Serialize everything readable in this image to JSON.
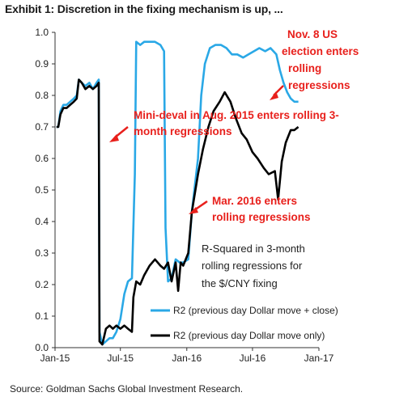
{
  "header": {
    "title": "Exhibit 1: Discretion in the fixing mechanism is up, ..."
  },
  "footer": {
    "source": "Source: Goldman Sachs Global Investment Research."
  },
  "chart_data": {
    "type": "line",
    "title": "Exhibit 1: Discretion in the fixing mechanism is up, ...",
    "xlabel": "",
    "ylabel": "",
    "x_ticks": [
      "Jan-15",
      "Jul-15",
      "Jan-16",
      "Jul-16",
      "Jan-17"
    ],
    "xlim": [
      "2015-01-01",
      "2017-01-01"
    ],
    "ylim": [
      0,
      1.0
    ],
    "y_ticks": [
      "0.0",
      "0.1",
      "0.2",
      "0.3",
      "0.4",
      "0.5",
      "0.6",
      "0.7",
      "0.8",
      "0.9",
      "1.0"
    ],
    "grid": false,
    "legend_position": "bottom-right",
    "note": [
      "R-Squared in 3-month",
      "rolling regressions for",
      "the $/CNY fixing"
    ],
    "annotations": [
      {
        "lines": [
          "Nov. 8 US",
          "election enters",
          "rolling",
          "regressions"
        ],
        "color": "#e8201c"
      },
      {
        "lines": [
          "Mini-deval in Aug. 2015  enters rolling 3-",
          "month regressions"
        ],
        "color": "#e8201c"
      },
      {
        "lines": [
          "Mar. 2016 enters",
          "rolling regressions"
        ],
        "color": "#e8201c"
      }
    ],
    "series": [
      {
        "name": "R2 (previous day Dollar move + close)",
        "color": "#2aa8e6",
        "points": [
          [
            "2015-01-05",
            0.7
          ],
          [
            "2015-01-10",
            0.7
          ],
          [
            "2015-01-16",
            0.75
          ],
          [
            "2015-01-24",
            0.77
          ],
          [
            "2015-02-02",
            0.77
          ],
          [
            "2015-02-12",
            0.78
          ],
          [
            "2015-02-22",
            0.79
          ],
          [
            "2015-03-02",
            0.8
          ],
          [
            "2015-03-08",
            0.85
          ],
          [
            "2015-03-16",
            0.84
          ],
          [
            "2015-03-26",
            0.83
          ],
          [
            "2015-04-06",
            0.84
          ],
          [
            "2015-04-16",
            0.82
          ],
          [
            "2015-04-26",
            0.84
          ],
          [
            "2015-05-02",
            0.85
          ],
          [
            "2015-05-04",
            0.05
          ],
          [
            "2015-05-12",
            0.01
          ],
          [
            "2015-05-22",
            0.02
          ],
          [
            "2015-06-01",
            0.03
          ],
          [
            "2015-06-10",
            0.03
          ],
          [
            "2015-06-20",
            0.05
          ],
          [
            "2015-07-01",
            0.09
          ],
          [
            "2015-07-12",
            0.17
          ],
          [
            "2015-07-22",
            0.21
          ],
          [
            "2015-08-02",
            0.22
          ],
          [
            "2015-08-10",
            0.55
          ],
          [
            "2015-08-14",
            0.97
          ],
          [
            "2015-08-25",
            0.96
          ],
          [
            "2015-09-05",
            0.97
          ],
          [
            "2015-09-20",
            0.97
          ],
          [
            "2015-10-05",
            0.97
          ],
          [
            "2015-10-20",
            0.96
          ],
          [
            "2015-10-30",
            0.94
          ],
          [
            "2015-11-03",
            0.38
          ],
          [
            "2015-11-10",
            0.21
          ],
          [
            "2015-11-20",
            0.22
          ],
          [
            "2015-12-01",
            0.28
          ],
          [
            "2015-12-12",
            0.27
          ],
          [
            "2015-12-22",
            0.27
          ],
          [
            "2016-01-05",
            0.28
          ],
          [
            "2016-01-15",
            0.43
          ],
          [
            "2016-02-01",
            0.6
          ],
          [
            "2016-02-10",
            0.8
          ],
          [
            "2016-02-20",
            0.9
          ],
          [
            "2016-03-05",
            0.95
          ],
          [
            "2016-03-20",
            0.96
          ],
          [
            "2016-04-05",
            0.96
          ],
          [
            "2016-04-20",
            0.95
          ],
          [
            "2016-05-05",
            0.93
          ],
          [
            "2016-05-20",
            0.93
          ],
          [
            "2016-06-05",
            0.92
          ],
          [
            "2016-06-20",
            0.93
          ],
          [
            "2016-07-05",
            0.94
          ],
          [
            "2016-07-20",
            0.95
          ],
          [
            "2016-08-05",
            0.94
          ],
          [
            "2016-08-20",
            0.95
          ],
          [
            "2016-09-05",
            0.93
          ],
          [
            "2016-09-15",
            0.88
          ],
          [
            "2016-09-25",
            0.84
          ],
          [
            "2016-10-05",
            0.81
          ],
          [
            "2016-10-15",
            0.79
          ],
          [
            "2016-10-25",
            0.78
          ],
          [
            "2016-11-05",
            0.78
          ]
        ]
      },
      {
        "name": "R2 (previous day Dollar move only)",
        "color": "#000000",
        "points": [
          [
            "2015-01-05",
            0.7
          ],
          [
            "2015-01-10",
            0.7
          ],
          [
            "2015-01-16",
            0.74
          ],
          [
            "2015-01-24",
            0.76
          ],
          [
            "2015-02-02",
            0.76
          ],
          [
            "2015-02-12",
            0.77
          ],
          [
            "2015-02-22",
            0.78
          ],
          [
            "2015-03-02",
            0.79
          ],
          [
            "2015-03-08",
            0.85
          ],
          [
            "2015-03-16",
            0.84
          ],
          [
            "2015-03-26",
            0.82
          ],
          [
            "2015-04-06",
            0.83
          ],
          [
            "2015-04-16",
            0.82
          ],
          [
            "2015-04-26",
            0.83
          ],
          [
            "2015-05-02",
            0.84
          ],
          [
            "2015-05-04",
            0.02
          ],
          [
            "2015-05-12",
            0.01
          ],
          [
            "2015-05-22",
            0.06
          ],
          [
            "2015-06-01",
            0.07
          ],
          [
            "2015-06-10",
            0.06
          ],
          [
            "2015-06-20",
            0.07
          ],
          [
            "2015-07-01",
            0.06
          ],
          [
            "2015-07-12",
            0.07
          ],
          [
            "2015-07-22",
            0.06
          ],
          [
            "2015-08-02",
            0.05
          ],
          [
            "2015-08-06",
            0.16
          ],
          [
            "2015-08-14",
            0.21
          ],
          [
            "2015-08-25",
            0.2
          ],
          [
            "2015-09-05",
            0.23
          ],
          [
            "2015-09-20",
            0.26
          ],
          [
            "2015-10-05",
            0.28
          ],
          [
            "2015-10-20",
            0.26
          ],
          [
            "2015-10-30",
            0.25
          ],
          [
            "2015-11-10",
            0.27
          ],
          [
            "2015-11-20",
            0.21
          ],
          [
            "2015-12-01",
            0.27
          ],
          [
            "2015-12-08",
            0.18
          ],
          [
            "2015-12-15",
            0.27
          ],
          [
            "2015-12-22",
            0.26
          ],
          [
            "2016-01-05",
            0.3
          ],
          [
            "2016-01-15",
            0.43
          ],
          [
            "2016-02-01",
            0.55
          ],
          [
            "2016-02-15",
            0.63
          ],
          [
            "2016-03-01",
            0.7
          ],
          [
            "2016-03-15",
            0.75
          ],
          [
            "2016-04-01",
            0.78
          ],
          [
            "2016-04-15",
            0.81
          ],
          [
            "2016-05-01",
            0.78
          ],
          [
            "2016-05-15",
            0.73
          ],
          [
            "2016-06-01",
            0.68
          ],
          [
            "2016-06-15",
            0.66
          ],
          [
            "2016-07-01",
            0.62
          ],
          [
            "2016-07-15",
            0.6
          ],
          [
            "2016-08-01",
            0.57
          ],
          [
            "2016-08-15",
            0.55
          ],
          [
            "2016-09-01",
            0.56
          ],
          [
            "2016-09-10",
            0.47
          ],
          [
            "2016-09-20",
            0.59
          ],
          [
            "2016-10-01",
            0.65
          ],
          [
            "2016-10-15",
            0.69
          ],
          [
            "2016-10-25",
            0.69
          ],
          [
            "2016-11-05",
            0.7
          ]
        ]
      }
    ]
  }
}
